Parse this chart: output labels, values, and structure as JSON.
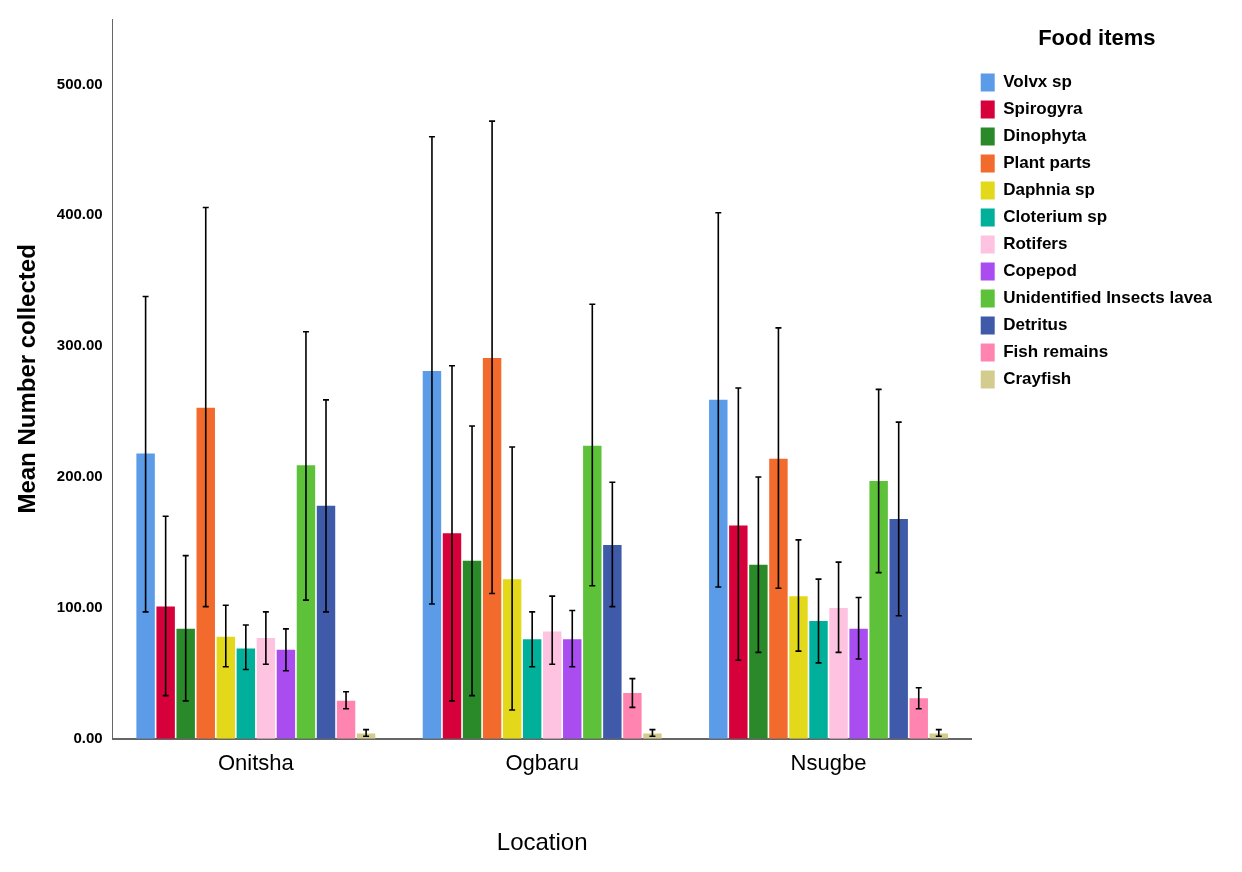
{
  "chart_data": {
    "type": "bar",
    "xlabel": "Location",
    "ylabel": "Mean Number collected",
    "legend_title": "Food items",
    "legend": "right",
    "grid": false,
    "categories": [
      "Onitsha",
      "Ogbaru",
      "Nsugbe"
    ],
    "ylim": [
      0,
      550
    ],
    "yticks": [
      {
        "value": 0,
        "label": "0.00"
      },
      {
        "value": 100,
        "label": "100.00"
      },
      {
        "value": 200,
        "label": "200.00"
      },
      {
        "value": 300,
        "label": "300.00"
      },
      {
        "value": 400,
        "label": "400.00"
      },
      {
        "value": 500,
        "label": "500.00"
      }
    ],
    "series": [
      {
        "name": "Volvx sp",
        "color": "#5b9be8",
        "values": [
          218,
          281,
          259
        ],
        "errors": [
          [
            97,
            338
          ],
          [
            103,
            460
          ],
          [
            116,
            402
          ]
        ]
      },
      {
        "name": "Spirogyra",
        "color": "#d6003a",
        "values": [
          101,
          157,
          163
        ],
        "errors": [
          [
            33,
            170
          ],
          [
            29,
            285
          ],
          [
            60,
            268
          ]
        ]
      },
      {
        "name": "Dinophyta",
        "color": "#2a8a2a",
        "values": [
          84,
          136,
          133
        ],
        "errors": [
          [
            29,
            140
          ],
          [
            33,
            239
          ],
          [
            66,
            200
          ]
        ]
      },
      {
        "name": "Plant parts",
        "color": "#f26b2c",
        "values": [
          253,
          291,
          214
        ],
        "errors": [
          [
            101,
            406
          ],
          [
            111,
            472
          ],
          [
            115,
            314
          ]
        ]
      },
      {
        "name": "Daphnia sp",
        "color": "#e3d91a",
        "values": [
          78,
          122,
          109
        ],
        "errors": [
          [
            55,
            102
          ],
          [
            22,
            223
          ],
          [
            67,
            152
          ]
        ]
      },
      {
        "name": "Cloterium sp",
        "color": "#00b09a",
        "values": [
          69,
          76,
          90
        ],
        "errors": [
          [
            53,
            87
          ],
          [
            55,
            97
          ],
          [
            58,
            122
          ]
        ]
      },
      {
        "name": "Rotifers",
        "color": "#fdc3e0",
        "values": [
          77,
          82,
          100
        ],
        "errors": [
          [
            57,
            97
          ],
          [
            57,
            109
          ],
          [
            66,
            135
          ]
        ]
      },
      {
        "name": "Copepod",
        "color": "#a94cf0",
        "values": [
          68,
          76,
          84
        ],
        "errors": [
          [
            52,
            84
          ],
          [
            55,
            98
          ],
          [
            61,
            108
          ]
        ]
      },
      {
        "name": "Unidentified Insects lavea",
        "color": "#5ec13a",
        "values": [
          209,
          224,
          197
        ],
        "errors": [
          [
            106,
            311
          ],
          [
            117,
            332
          ],
          [
            127,
            267
          ]
        ]
      },
      {
        "name": "Detritus",
        "color": "#3f5aa8",
        "values": [
          178,
          148,
          168
        ],
        "errors": [
          [
            97,
            259
          ],
          [
            101,
            196
          ],
          [
            94,
            242
          ]
        ]
      },
      {
        "name": "Fish remains",
        "color": "#ff85b0",
        "values": [
          29,
          35,
          31
        ],
        "errors": [
          [
            23,
            36
          ],
          [
            24,
            46
          ],
          [
            23,
            39
          ]
        ]
      },
      {
        "name": "Crayfish",
        "color": "#d4cc8f",
        "values": [
          4,
          4,
          4
        ],
        "errors": [
          [
            2,
            7
          ],
          [
            2,
            7
          ],
          [
            2,
            7
          ]
        ]
      }
    ]
  }
}
